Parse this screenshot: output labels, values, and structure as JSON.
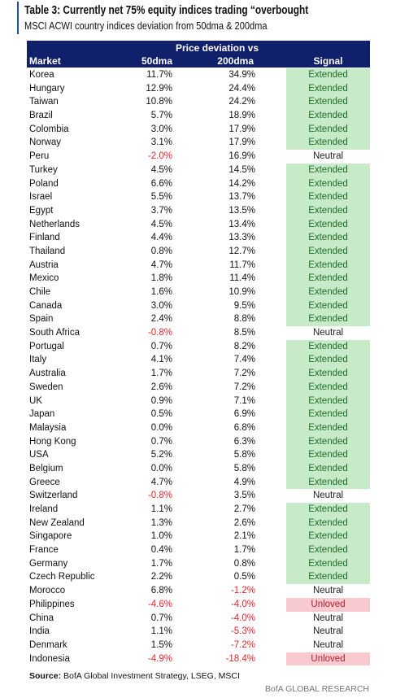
{
  "header": {
    "title": "Table 3: Currently net 75% equity indices trading “overbought",
    "subtitle": "MSCI ACWI country indices deviation from 50dma & 200dma"
  },
  "table": {
    "group": "Price deviation vs",
    "columns": [
      "Market",
      "50dma",
      "200dma",
      "Signal"
    ],
    "rows": [
      [
        "Korea",
        "11.7%",
        "34.9%",
        "Extended"
      ],
      [
        "Hungary",
        "12.9%",
        "24.4%",
        "Extended"
      ],
      [
        "Taiwan",
        "10.8%",
        "24.2%",
        "Extended"
      ],
      [
        "Brazil",
        "5.7%",
        "18.9%",
        "Extended"
      ],
      [
        "Colombia",
        "3.0%",
        "17.9%",
        "Extended"
      ],
      [
        "Norway",
        "3.1%",
        "17.9%",
        "Extended"
      ],
      [
        "Peru",
        "-2.0%",
        "16.9%",
        "Neutral"
      ],
      [
        "Turkey",
        "4.5%",
        "14.5%",
        "Extended"
      ],
      [
        "Poland",
        "6.6%",
        "14.2%",
        "Extended"
      ],
      [
        "Israel",
        "5.5%",
        "13.7%",
        "Extended"
      ],
      [
        "Egypt",
        "3.7%",
        "13.5%",
        "Extended"
      ],
      [
        "Netherlands",
        "4.5%",
        "13.4%",
        "Extended"
      ],
      [
        "Finland",
        "4.4%",
        "13.3%",
        "Extended"
      ],
      [
        "Thailand",
        "0.8%",
        "12.7%",
        "Extended"
      ],
      [
        "Austria",
        "4.7%",
        "11.7%",
        "Extended"
      ],
      [
        "Mexico",
        "1.8%",
        "11.4%",
        "Extended"
      ],
      [
        "Chile",
        "1.6%",
        "10.9%",
        "Extended"
      ],
      [
        "Canada",
        "3.0%",
        "9.5%",
        "Extended"
      ],
      [
        "Spain",
        "2.4%",
        "8.8%",
        "Extended"
      ],
      [
        "South Africa",
        "-0.8%",
        "8.5%",
        "Neutral"
      ],
      [
        "Portugal",
        "0.7%",
        "8.2%",
        "Extended"
      ],
      [
        "Italy",
        "4.1%",
        "7.4%",
        "Extended"
      ],
      [
        "Australia",
        "1.7%",
        "7.2%",
        "Extended"
      ],
      [
        "Sweden",
        "2.6%",
        "7.2%",
        "Extended"
      ],
      [
        "UK",
        "0.9%",
        "7.1%",
        "Extended"
      ],
      [
        "Japan",
        "0.5%",
        "6.9%",
        "Extended"
      ],
      [
        "Malaysia",
        "0.0%",
        "6.8%",
        "Extended"
      ],
      [
        "Hong Kong",
        "0.7%",
        "6.3%",
        "Extended"
      ],
      [
        "USA",
        "5.2%",
        "5.8%",
        "Extended"
      ],
      [
        "Belgium",
        "0.0%",
        "5.8%",
        "Extended"
      ],
      [
        "Greece",
        "4.7%",
        "4.9%",
        "Extended"
      ],
      [
        "Switzerland",
        "-0.8%",
        "3.5%",
        "Neutral"
      ],
      [
        "Ireland",
        "1.1%",
        "2.7%",
        "Extended"
      ],
      [
        "New Zealand",
        "1.3%",
        "2.6%",
        "Extended"
      ],
      [
        "Singapore",
        "1.0%",
        "2.1%",
        "Extended"
      ],
      [
        "France",
        "0.4%",
        "1.7%",
        "Extended"
      ],
      [
        "Germany",
        "1.7%",
        "0.8%",
        "Extended"
      ],
      [
        "Czech Republic",
        "2.2%",
        "0.5%",
        "Extended"
      ],
      [
        "Morocco",
        "6.8%",
        "-1.2%",
        "Neutral"
      ],
      [
        "Philippines",
        "-4.6%",
        "-4.0%",
        "Unloved"
      ],
      [
        "China",
        "0.7%",
        "-4.0%",
        "Neutral"
      ],
      [
        "India",
        "1.1%",
        "-5.3%",
        "Neutral"
      ],
      [
        "Denmark",
        "1.5%",
        "-7.2%",
        "Neutral"
      ],
      [
        "Indonesia",
        "-4.9%",
        "-18.4%",
        "Unloved"
      ]
    ]
  },
  "footer": {
    "source_label": "Source:",
    "source": "BofA Global Investment Strategy, LSEG, MSCI",
    "brand": "BofA GLOBAL RESEARCH"
  }
}
